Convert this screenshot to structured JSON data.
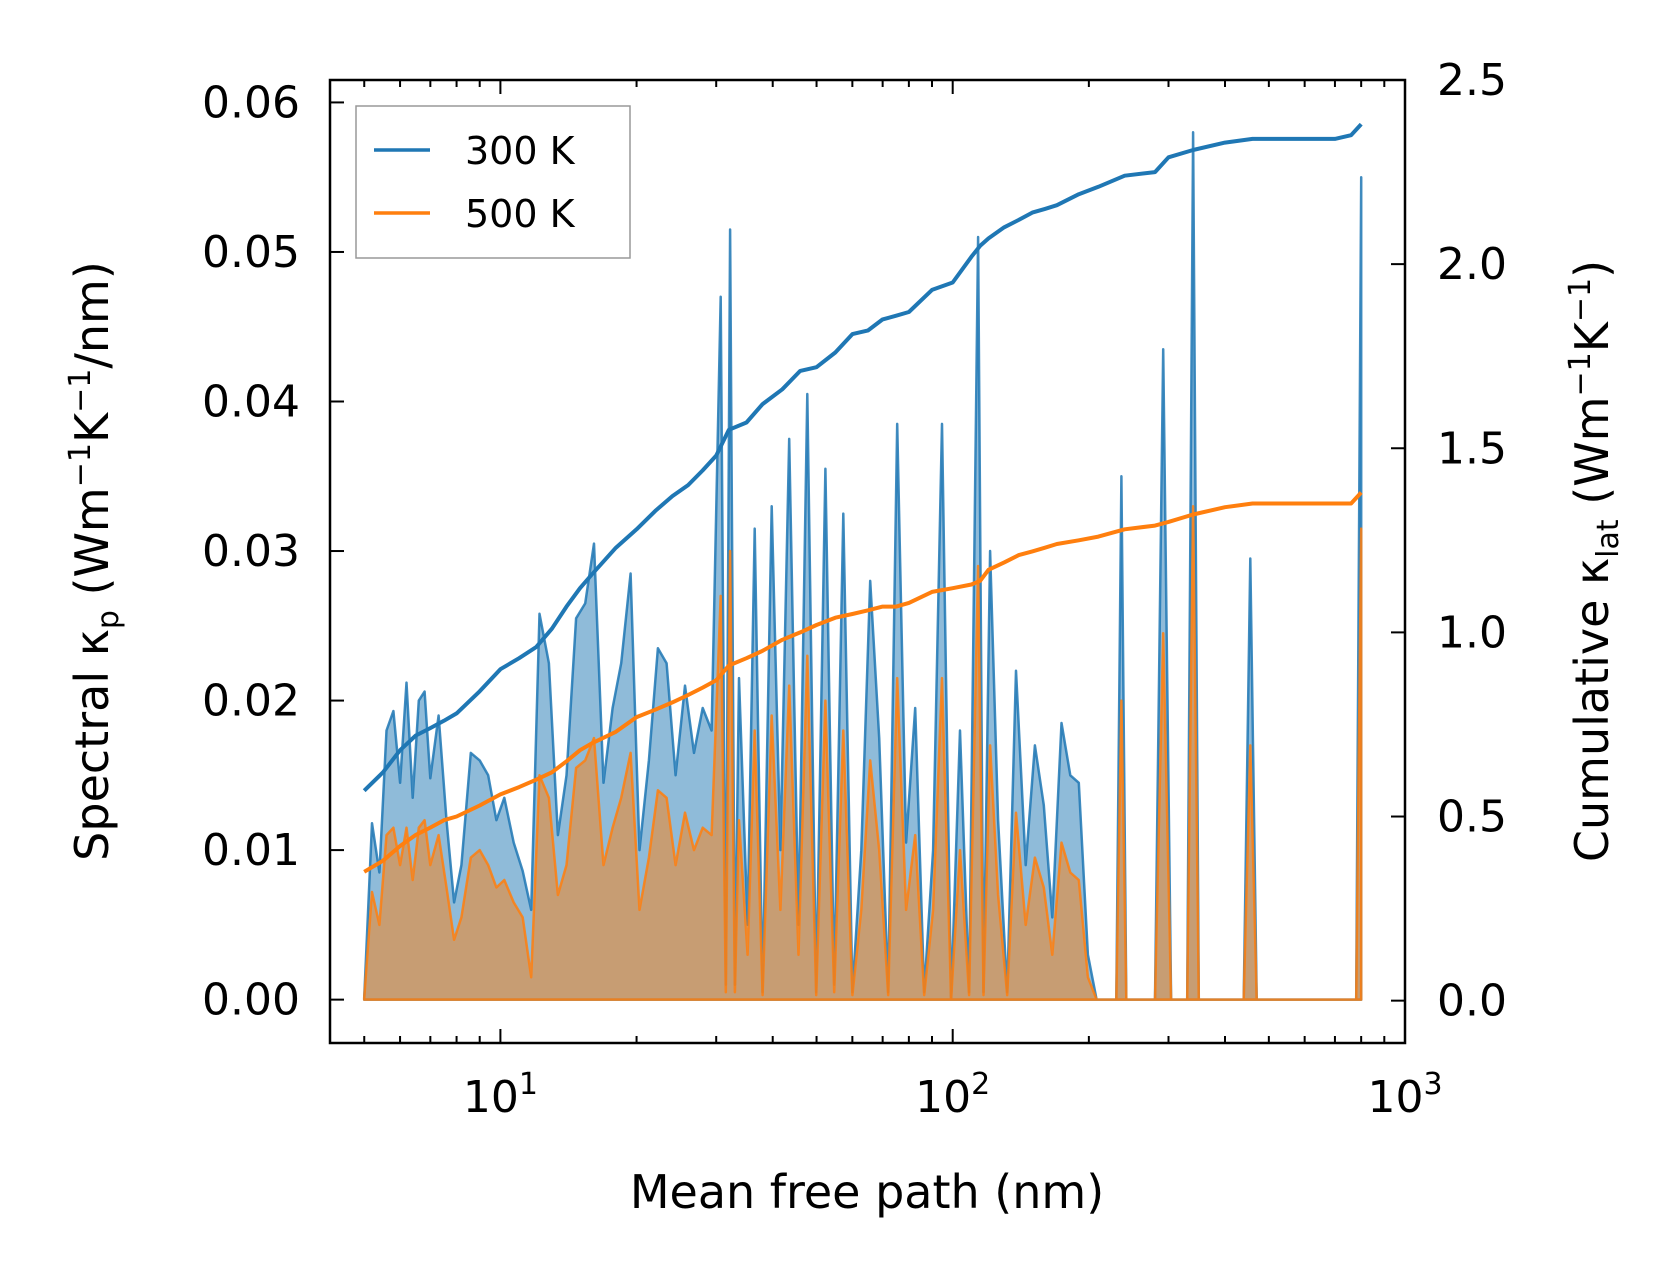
{
  "chart_data": {
    "type": "line",
    "title": "",
    "xlabel": "Mean free path (nm)",
    "xscale": "log",
    "xlim": [
      4.2,
      1000
    ],
    "x_ticks": [
      {
        "value": 10,
        "base": "10",
        "exp": "1"
      },
      {
        "value": 100,
        "base": "10",
        "exp": "2"
      },
      {
        "value": 1000,
        "base": "10",
        "exp": "3"
      }
    ],
    "y_left": {
      "label_main": "Spectral κ",
      "label_sub": "p",
      "label_units_open": "(Wm",
      "label_sup1": "−1",
      "label_mid": "K",
      "label_sup2": "−1",
      "label_units_close": "/nm)",
      "ylim": [
        -0.0029,
        0.0615
      ],
      "ticks": [
        "0.00",
        "0.01",
        "0.02",
        "0.03",
        "0.04",
        "0.05",
        "0.06"
      ],
      "tick_values": [
        0,
        0.01,
        0.02,
        0.03,
        0.04,
        0.05,
        0.06
      ]
    },
    "y_right": {
      "label_main": "Cumulative κ",
      "label_sub": "lat",
      "label_units_open": "(Wm",
      "label_sup1": "−1",
      "label_mid": "K",
      "label_sup2": "−1",
      "label_units_close": ")",
      "ylim": [
        -0.115,
        2.5
      ],
      "ticks": [
        "0.0",
        "0.5",
        "1.0",
        "1.5",
        "2.0",
        "2.5"
      ],
      "tick_values": [
        0,
        0.5,
        1.0,
        1.5,
        2.0,
        2.5
      ]
    },
    "legend": {
      "placement": "upper-left",
      "entries": [
        "300 K",
        "500 K"
      ]
    },
    "series": [
      {
        "name": "300 K",
        "color": "#1f77b4",
        "spectral": {
          "x": [
            5.0,
            5.2,
            5.4,
            5.6,
            5.8,
            6.0,
            6.2,
            6.4,
            6.6,
            6.8,
            7.0,
            7.3,
            7.6,
            7.9,
            8.2,
            8.6,
            9.0,
            9.4,
            9.8,
            10.2,
            10.7,
            11.2,
            11.7,
            12.2,
            12.8,
            13.4,
            14.0,
            14.7,
            15.4,
            16.1,
            16.9,
            17.7,
            18.5,
            19.4,
            20.3,
            21.3,
            22.3,
            23.3,
            24.4,
            25.6,
            26.8,
            28.0,
            29.3,
            30.7,
            31.5,
            32.2,
            33.0,
            33.7,
            35.2,
            36.5,
            38.0,
            39.8,
            41.6,
            43.5,
            45.6,
            47.7,
            49.9,
            52.3,
            54.7,
            57.3,
            60.0,
            62.8,
            65.7,
            68.8,
            72.0,
            75.4,
            78.9,
            82.6,
            86.5,
            90.5,
            94.7,
            99.2,
            103.8,
            108.7,
            113.8,
            117.0,
            121.0,
            126.0,
            132.0,
            138.0,
            145.0,
            152.0,
            159.0,
            166.0,
            174.0,
            182.0,
            190.0,
            199.0,
            208.0,
            230.0,
            236.0,
            242.0,
            280.0,
            292.0,
            304.0,
            330.0,
            340.0,
            350.0,
            440.0,
            455.0,
            470.0,
            760.0,
            780.0,
            800.0
          ],
          "values": [
            0.0001,
            0.0118,
            0.0085,
            0.018,
            0.0193,
            0.0145,
            0.0212,
            0.0135,
            0.02,
            0.0206,
            0.0148,
            0.019,
            0.012,
            0.0065,
            0.009,
            0.0165,
            0.016,
            0.015,
            0.012,
            0.0135,
            0.0105,
            0.0086,
            0.006,
            0.0258,
            0.0225,
            0.011,
            0.015,
            0.0255,
            0.0265,
            0.0305,
            0.0145,
            0.0195,
            0.0225,
            0.0285,
            0.01,
            0.016,
            0.0235,
            0.0225,
            0.015,
            0.021,
            0.0165,
            0.0195,
            0.018,
            0.047,
            0.001,
            0.0515,
            0.001,
            0.0215,
            0.005,
            0.0315,
            0.0005,
            0.033,
            0.01,
            0.0375,
            0.005,
            0.0405,
            0.0005,
            0.0355,
            0.001,
            0.0325,
            0.0005,
            0.01,
            0.028,
            0.0175,
            0.0005,
            0.0385,
            0.0105,
            0.0195,
            0.0005,
            0.01,
            0.0385,
            0.0,
            0.018,
            0.0005,
            0.051,
            0.0005,
            0.03,
            0.012,
            0.0005,
            0.022,
            0.009,
            0.017,
            0.013,
            0.0055,
            0.0185,
            0.015,
            0.0145,
            0.003,
            0.0,
            0.0,
            0.035,
            0.0,
            0.0,
            0.0435,
            0.0,
            0.0,
            0.058,
            0.0,
            0.0,
            0.0295,
            0.0,
            0.0,
            0.0,
            0.055
          ]
        },
        "cumulative": {
          "x": [
            5.0,
            5.5,
            6.0,
            6.5,
            7.0,
            7.5,
            8.0,
            9.0,
            10.0,
            11.0,
            12.0,
            13.0,
            14.0,
            15.0,
            16.0,
            18.0,
            20.0,
            22.0,
            24.0,
            26.0,
            28.0,
            30.0,
            32.0,
            35.0,
            38.0,
            42.0,
            46.0,
            50.0,
            55.0,
            60.0,
            65.0,
            70.0,
            75.0,
            80.0,
            90.0,
            100.0,
            110.0,
            115.0,
            120.0,
            130.0,
            140.0,
            150.0,
            160.0,
            170.0,
            190.0,
            210.0,
            240.0,
            280.0,
            300.0,
            340.0,
            400.0,
            460.0,
            500.0,
            700.0,
            760.0,
            800.0
          ],
          "values": [
            0.57,
            0.62,
            0.68,
            0.72,
            0.74,
            0.76,
            0.78,
            0.84,
            0.9,
            0.93,
            0.96,
            1.01,
            1.07,
            1.12,
            1.16,
            1.23,
            1.28,
            1.33,
            1.37,
            1.4,
            1.44,
            1.48,
            1.55,
            1.57,
            1.62,
            1.66,
            1.71,
            1.72,
            1.76,
            1.81,
            1.82,
            1.85,
            1.86,
            1.87,
            1.93,
            1.95,
            2.02,
            2.05,
            2.07,
            2.1,
            2.12,
            2.14,
            2.15,
            2.16,
            2.19,
            2.21,
            2.24,
            2.25,
            2.29,
            2.31,
            2.33,
            2.34,
            2.34,
            2.34,
            2.35,
            2.38
          ]
        }
      },
      {
        "name": "500 K",
        "color": "#ff7f0e",
        "spectral": {
          "x": [
            5.0,
            5.2,
            5.4,
            5.6,
            5.8,
            6.0,
            6.2,
            6.4,
            6.6,
            6.8,
            7.0,
            7.3,
            7.6,
            7.9,
            8.2,
            8.6,
            9.0,
            9.4,
            9.8,
            10.2,
            10.7,
            11.2,
            11.7,
            12.2,
            12.8,
            13.4,
            14.0,
            14.7,
            15.4,
            16.1,
            16.9,
            17.7,
            18.5,
            19.4,
            20.3,
            21.3,
            22.3,
            23.3,
            24.4,
            25.6,
            26.8,
            28.0,
            29.3,
            30.7,
            31.5,
            32.2,
            33.0,
            33.7,
            35.2,
            36.5,
            38.0,
            39.8,
            41.6,
            43.5,
            45.6,
            47.7,
            49.9,
            52.3,
            54.7,
            57.3,
            60.0,
            62.8,
            65.7,
            68.8,
            72.0,
            75.4,
            78.9,
            82.6,
            86.5,
            90.5,
            94.7,
            99.2,
            103.8,
            108.7,
            113.8,
            117.0,
            121.0,
            126.0,
            132.0,
            138.0,
            145.0,
            152.0,
            159.0,
            166.0,
            174.0,
            182.0,
            190.0,
            199.0,
            208.0,
            230.0,
            236.0,
            242.0,
            280.0,
            292.0,
            304.0,
            330.0,
            340.0,
            350.0,
            440.0,
            455.0,
            470.0,
            760.0,
            780.0,
            800.0
          ],
          "values": [
            0.0001,
            0.0072,
            0.005,
            0.011,
            0.0115,
            0.009,
            0.0115,
            0.008,
            0.0115,
            0.012,
            0.009,
            0.011,
            0.0075,
            0.004,
            0.0055,
            0.0095,
            0.01,
            0.009,
            0.0075,
            0.008,
            0.0065,
            0.0055,
            0.0015,
            0.015,
            0.0135,
            0.007,
            0.009,
            0.0155,
            0.016,
            0.0175,
            0.009,
            0.0115,
            0.0135,
            0.0165,
            0.006,
            0.0095,
            0.014,
            0.0135,
            0.009,
            0.0125,
            0.01,
            0.0115,
            0.011,
            0.027,
            0.0005,
            0.03,
            0.0005,
            0.012,
            0.003,
            0.018,
            0.0003,
            0.019,
            0.006,
            0.021,
            0.003,
            0.023,
            0.0003,
            0.02,
            0.0005,
            0.018,
            0.0003,
            0.006,
            0.016,
            0.01,
            0.0003,
            0.0215,
            0.006,
            0.011,
            0.0003,
            0.006,
            0.0215,
            0.0,
            0.01,
            0.0003,
            0.029,
            0.0003,
            0.017,
            0.007,
            0.0003,
            0.0125,
            0.005,
            0.0095,
            0.0075,
            0.003,
            0.0105,
            0.0085,
            0.008,
            0.0015,
            0.0,
            0.0,
            0.02,
            0.0,
            0.0,
            0.0245,
            0.0,
            0.0,
            0.033,
            0.0,
            0.0,
            0.017,
            0.0,
            0.0,
            0.0,
            0.0315
          ]
        },
        "cumulative": {
          "x": [
            5.0,
            5.5,
            6.0,
            6.5,
            7.0,
            7.5,
            8.0,
            9.0,
            10.0,
            11.0,
            12.0,
            13.0,
            14.0,
            15.0,
            16.0,
            18.0,
            20.0,
            22.0,
            24.0,
            26.0,
            28.0,
            30.0,
            32.0,
            35.0,
            38.0,
            42.0,
            46.0,
            50.0,
            55.0,
            60.0,
            65.0,
            70.0,
            75.0,
            80.0,
            90.0,
            100.0,
            110.0,
            115.0,
            120.0,
            130.0,
            140.0,
            150.0,
            160.0,
            170.0,
            190.0,
            210.0,
            240.0,
            280.0,
            300.0,
            340.0,
            400.0,
            460.0,
            500.0,
            700.0,
            760.0,
            800.0
          ],
          "values": [
            0.35,
            0.38,
            0.42,
            0.45,
            0.47,
            0.49,
            0.5,
            0.53,
            0.56,
            0.58,
            0.6,
            0.62,
            0.65,
            0.68,
            0.7,
            0.73,
            0.77,
            0.79,
            0.81,
            0.83,
            0.85,
            0.87,
            0.91,
            0.93,
            0.95,
            0.98,
            1.0,
            1.02,
            1.04,
            1.05,
            1.06,
            1.07,
            1.07,
            1.08,
            1.11,
            1.12,
            1.13,
            1.14,
            1.17,
            1.19,
            1.21,
            1.22,
            1.23,
            1.24,
            1.25,
            1.26,
            1.28,
            1.29,
            1.3,
            1.32,
            1.34,
            1.35,
            1.35,
            1.35,
            1.35,
            1.38
          ]
        }
      }
    ]
  }
}
